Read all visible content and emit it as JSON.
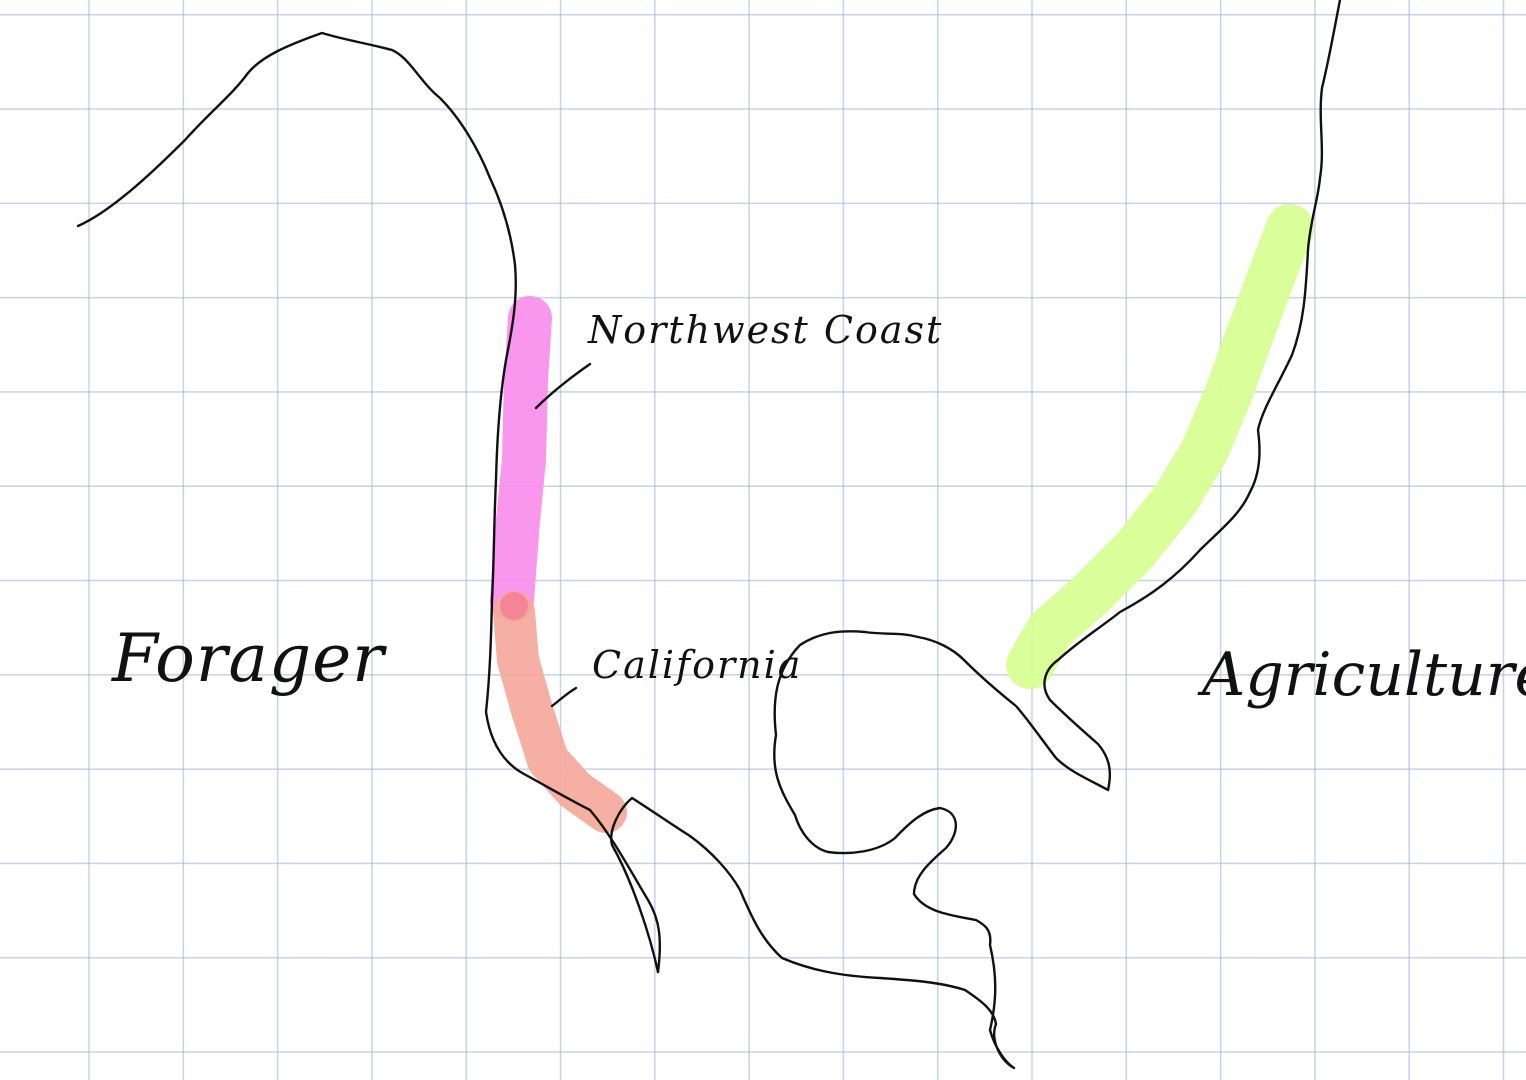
{
  "canvas": {
    "background": "#ffffff",
    "grid_color": "#a8bde0"
  },
  "labels": {
    "forager": "Forager",
    "agriculture": "Agriculture",
    "northwest_coast": "Northwest Coast",
    "california": "California"
  },
  "regions": {
    "northwest_coast": {
      "label": "Northwest Coast",
      "color": "#f990ec"
    },
    "california": {
      "label": "California",
      "color": "#f4a89b"
    },
    "agriculture": {
      "label": "Agriculture",
      "color": "#d8fe95"
    }
  },
  "ink_color": "#111111"
}
